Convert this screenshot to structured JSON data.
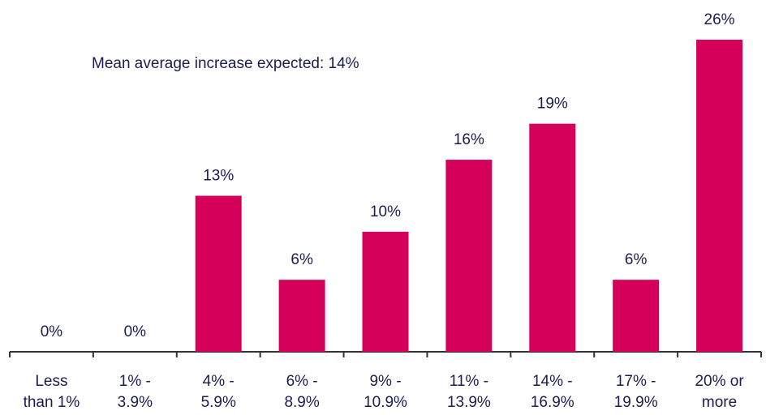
{
  "chart_data": {
    "type": "bar",
    "annotation": "Mean average increase expected: 14%",
    "categories": [
      "Less\nthan 1%",
      "1% -\n3.9%",
      "4% -\n5.9%",
      "6% -\n8.9%",
      "9% -\n10.9%",
      "11% -\n13.9%",
      "14% -\n16.9%",
      "17% -\n19.9%",
      "20% or\nmore"
    ],
    "values": [
      0,
      0,
      13,
      6,
      10,
      16,
      19,
      6,
      26
    ],
    "value_labels": [
      "0%",
      "0%",
      "13%",
      "6%",
      "10%",
      "16%",
      "19%",
      "6%",
      "26%"
    ],
    "color": "#d4005a"
  }
}
